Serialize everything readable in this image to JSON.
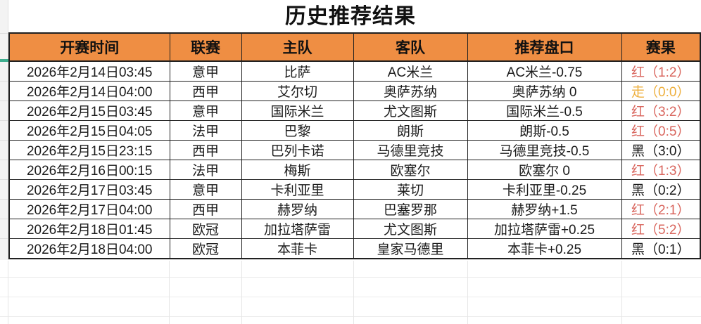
{
  "title": "历史推荐结果",
  "colors": {
    "header_bg": "#ef8e43",
    "freeze_indicator_teal": "#3fae8f",
    "result_red": "#d9665e",
    "result_push": "#eeb03f",
    "result_black": "#1a1a1a"
  },
  "table": {
    "headers": [
      "开赛时间",
      "联赛",
      "主队",
      "客队",
      "推荐盘口",
      "赛果"
    ],
    "rows": [
      {
        "time": "2026年2月14日03:45",
        "league": "意甲",
        "home": "比萨",
        "away": "AC米兰",
        "handicap": "AC米兰-0.75",
        "result": "红（1:2）",
        "result_type": "red"
      },
      {
        "time": "2026年2月14日04:00",
        "league": "西甲",
        "home": "艾尔切",
        "away": "奥萨苏纳",
        "handicap": "奥萨苏纳 0",
        "result": "走（0:0）",
        "result_type": "push"
      },
      {
        "time": "2026年2月15日03:45",
        "league": "意甲",
        "home": "国际米兰",
        "away": "尤文图斯",
        "handicap": "国际米兰-0.5",
        "result": "红（3:2）",
        "result_type": "red"
      },
      {
        "time": "2026年2月15日04:05",
        "league": "法甲",
        "home": "巴黎",
        "away": "朗斯",
        "handicap": "朗斯-0.5",
        "result": "红（0:5）",
        "result_type": "red"
      },
      {
        "time": "2026年2月15日23:15",
        "league": "西甲",
        "home": "巴列卡诺",
        "away": "马德里竞技",
        "handicap": "马德里竞技-0.5",
        "result": "黑（3:0）",
        "result_type": "black"
      },
      {
        "time": "2026年2月16日00:15",
        "league": "法甲",
        "home": "梅斯",
        "away": "欧塞尔",
        "handicap": "欧塞尔 0",
        "result": "红（1:3）",
        "result_type": "red"
      },
      {
        "time": "2026年2月17日03:45",
        "league": "意甲",
        "home": "卡利亚里",
        "away": "莱切",
        "handicap": "卡利亚里-0.25",
        "result": "黑（0:2）",
        "result_type": "black"
      },
      {
        "time": "2026年2月17日04:00",
        "league": "西甲",
        "home": "赫罗纳",
        "away": "巴塞罗那",
        "handicap": "赫罗纳+1.5",
        "result": "红（2:1）",
        "result_type": "red"
      },
      {
        "time": "2026年2月18日01:45",
        "league": "欧冠",
        "home": "加拉塔萨雷",
        "away": "尤文图斯",
        "handicap": "加拉塔萨雷+0.25",
        "result": "红（5:2）",
        "result_type": "red"
      },
      {
        "time": "2026年2月18日04:00",
        "league": "欧冠",
        "home": "本菲卡",
        "away": "皇家马德里",
        "handicap": "本菲卡+0.25",
        "result": "黑（0:1）",
        "result_type": "black"
      }
    ]
  }
}
